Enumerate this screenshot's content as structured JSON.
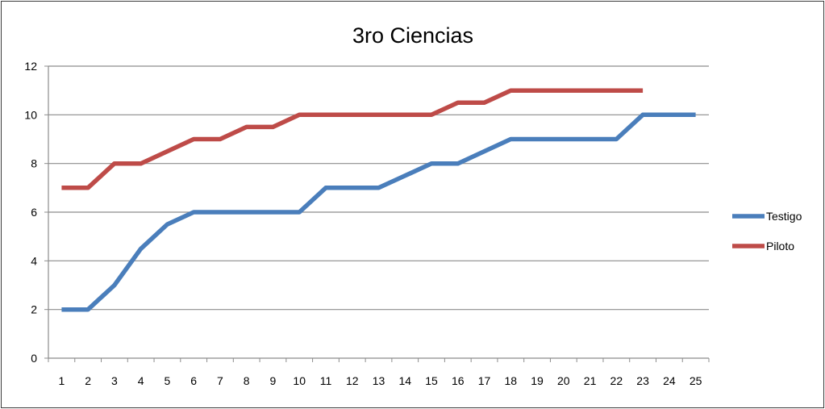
{
  "chart_data": {
    "type": "line",
    "title": "3ro Ciencias",
    "xlabel": "",
    "ylabel": "",
    "categories": [
      "1",
      "2",
      "3",
      "4",
      "5",
      "6",
      "7",
      "8",
      "9",
      "10",
      "11",
      "12",
      "13",
      "14",
      "15",
      "16",
      "17",
      "18",
      "19",
      "20",
      "21",
      "22",
      "23",
      "24",
      "25"
    ],
    "ylim": [
      0,
      12
    ],
    "yticks": [
      0,
      2,
      4,
      6,
      8,
      10,
      12
    ],
    "grid": true,
    "legend_position": "right",
    "series": [
      {
        "name": "Testigo",
        "color": "#4a7ebb",
        "values": [
          2,
          2,
          3,
          4.5,
          5.5,
          6,
          6,
          6,
          6,
          6,
          7,
          7,
          7,
          7.5,
          8,
          8,
          8.5,
          9,
          9,
          9,
          9,
          9,
          10,
          10,
          10
        ]
      },
      {
        "name": "Piloto",
        "color": "#be4b48",
        "values": [
          7,
          7,
          8,
          8,
          8.5,
          9,
          9,
          9.5,
          9.5,
          10,
          10,
          10,
          10,
          10,
          10,
          10.5,
          10.5,
          11,
          11,
          11,
          11,
          11,
          11,
          null,
          null
        ]
      }
    ]
  }
}
